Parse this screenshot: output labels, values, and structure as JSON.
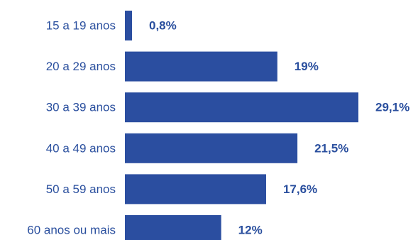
{
  "chart_data": {
    "type": "bar",
    "orientation": "horizontal",
    "categories": [
      "15 a 19 anos",
      "20 a 29 anos",
      "30 a 39 anos",
      "40 a 49 anos",
      "50 a 59 anos",
      "60 anos ou mais"
    ],
    "values": [
      0.8,
      19,
      29.1,
      21.5,
      17.6,
      12
    ],
    "value_labels": [
      "0,8%",
      "19%",
      "29,1%",
      "21,5%",
      "17,6%",
      "12%"
    ],
    "title": "",
    "xlabel": "",
    "ylabel": "",
    "xlim": [
      0,
      29.1
    ],
    "grid": false,
    "legend": "none",
    "colors": {
      "bar": "#2b4ea0",
      "text": "#2a4f9e"
    }
  }
}
